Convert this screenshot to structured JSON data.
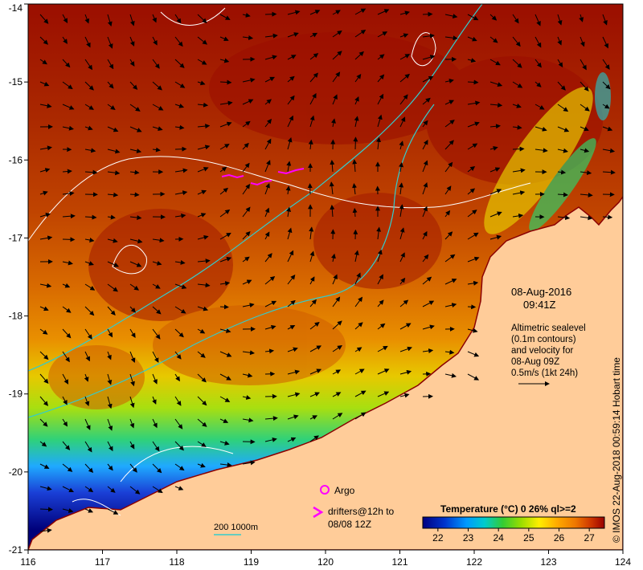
{
  "map": {
    "lon_ticks": [
      "116",
      "117",
      "118",
      "119",
      "120",
      "121",
      "122",
      "123",
      "124"
    ],
    "lat_ticks": [
      "-14",
      "-15",
      "-16",
      "-17",
      "-18",
      "-19",
      "-20",
      "-21"
    ],
    "lon_range": [
      116,
      124
    ],
    "lat_range": [
      -21,
      -14
    ]
  },
  "info": {
    "date": "08-Aug-2016",
    "time": "09:41Z",
    "alt_line1": "Altimetric sealevel",
    "alt_line2": "(0.1m contours)",
    "alt_line3": "and velocity for",
    "alt_line4": "08-Aug 09Z",
    "alt_line5": "0.5m/s (1kt 24h)"
  },
  "legend": {
    "argo": "Argo",
    "drifters_line1": "drifters@12h to",
    "drifters_line2": "08/08 12Z",
    "depth_label": "200  1000m"
  },
  "colorbar": {
    "title": "Temperature (°C) 0 26% ql>=2",
    "ticks": [
      "22",
      "23",
      "24",
      "25",
      "26",
      "27"
    ],
    "range": [
      21.5,
      27.5
    ],
    "colors": [
      "#000080",
      "#0033cc",
      "#0099ff",
      "#00cccc",
      "#33cc33",
      "#99dd00",
      "#ffee00",
      "#ffaa00",
      "#ee7700",
      "#cc3300",
      "#990000"
    ]
  },
  "copyright": "© IMOS 22-Aug-2018 00:59:14 Hobart time",
  "colors": {
    "land": "#ffcc99",
    "hot": "#9a0d00",
    "warm": "#c04400",
    "contour": "#ffffff",
    "isobath": "#33cccc",
    "drifter": "#ff00ff"
  }
}
